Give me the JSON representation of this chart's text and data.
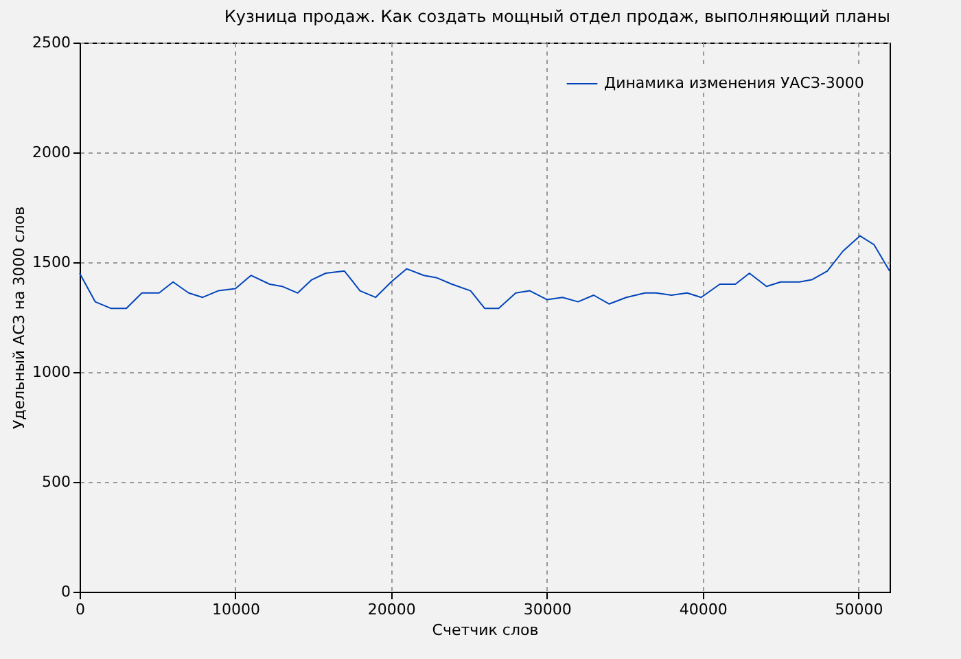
{
  "chart_data": {
    "type": "line",
    "title": "Кузница продаж. Как создать мощный отдел продаж, выполняющий планы",
    "xlabel": "Счетчик слов",
    "ylabel": "Удельный АСЗ на 3000 слов",
    "x": [
      0,
      1000,
      2000,
      3000,
      4000,
      5100,
      6000,
      7000,
      7900,
      8900,
      10000,
      11000,
      12200,
      13000,
      14000,
      14900,
      15800,
      17000,
      18000,
      19000,
      20000,
      21000,
      22100,
      22900,
      23900,
      25100,
      26000,
      26900,
      28000,
      28900,
      30000,
      31000,
      32000,
      33000,
      34000,
      35100,
      36300,
      37000,
      38000,
      39000,
      39900,
      41100,
      42100,
      43000,
      44100,
      45000,
      46200,
      47000,
      48000,
      49000,
      50100,
      51000,
      52000
    ],
    "series": [
      {
        "name": "Динамика изменения УАСЗ-3000",
        "color": "#0044bb",
        "values": [
          1450,
          1320,
          1290,
          1290,
          1360,
          1360,
          1410,
          1360,
          1340,
          1370,
          1380,
          1440,
          1400,
          1390,
          1360,
          1420,
          1450,
          1460,
          1370,
          1340,
          1410,
          1470,
          1440,
          1430,
          1400,
          1370,
          1290,
          1290,
          1360,
          1370,
          1330,
          1340,
          1320,
          1350,
          1310,
          1340,
          1360,
          1360,
          1350,
          1360,
          1340,
          1400,
          1400,
          1450,
          1390,
          1410,
          1410,
          1420,
          1460,
          1550,
          1620,
          1580,
          1460
        ]
      }
    ],
    "xlim": [
      0,
      52000
    ],
    "xticks": [
      0,
      10000,
      20000,
      30000,
      40000,
      50000
    ],
    "ylim": [
      0,
      2500
    ],
    "yticks": [
      0,
      500,
      1000,
      1500,
      2000,
      2500
    ],
    "grid": true,
    "legend": "top right",
    "marker": "none",
    "line_style": "solid"
  }
}
